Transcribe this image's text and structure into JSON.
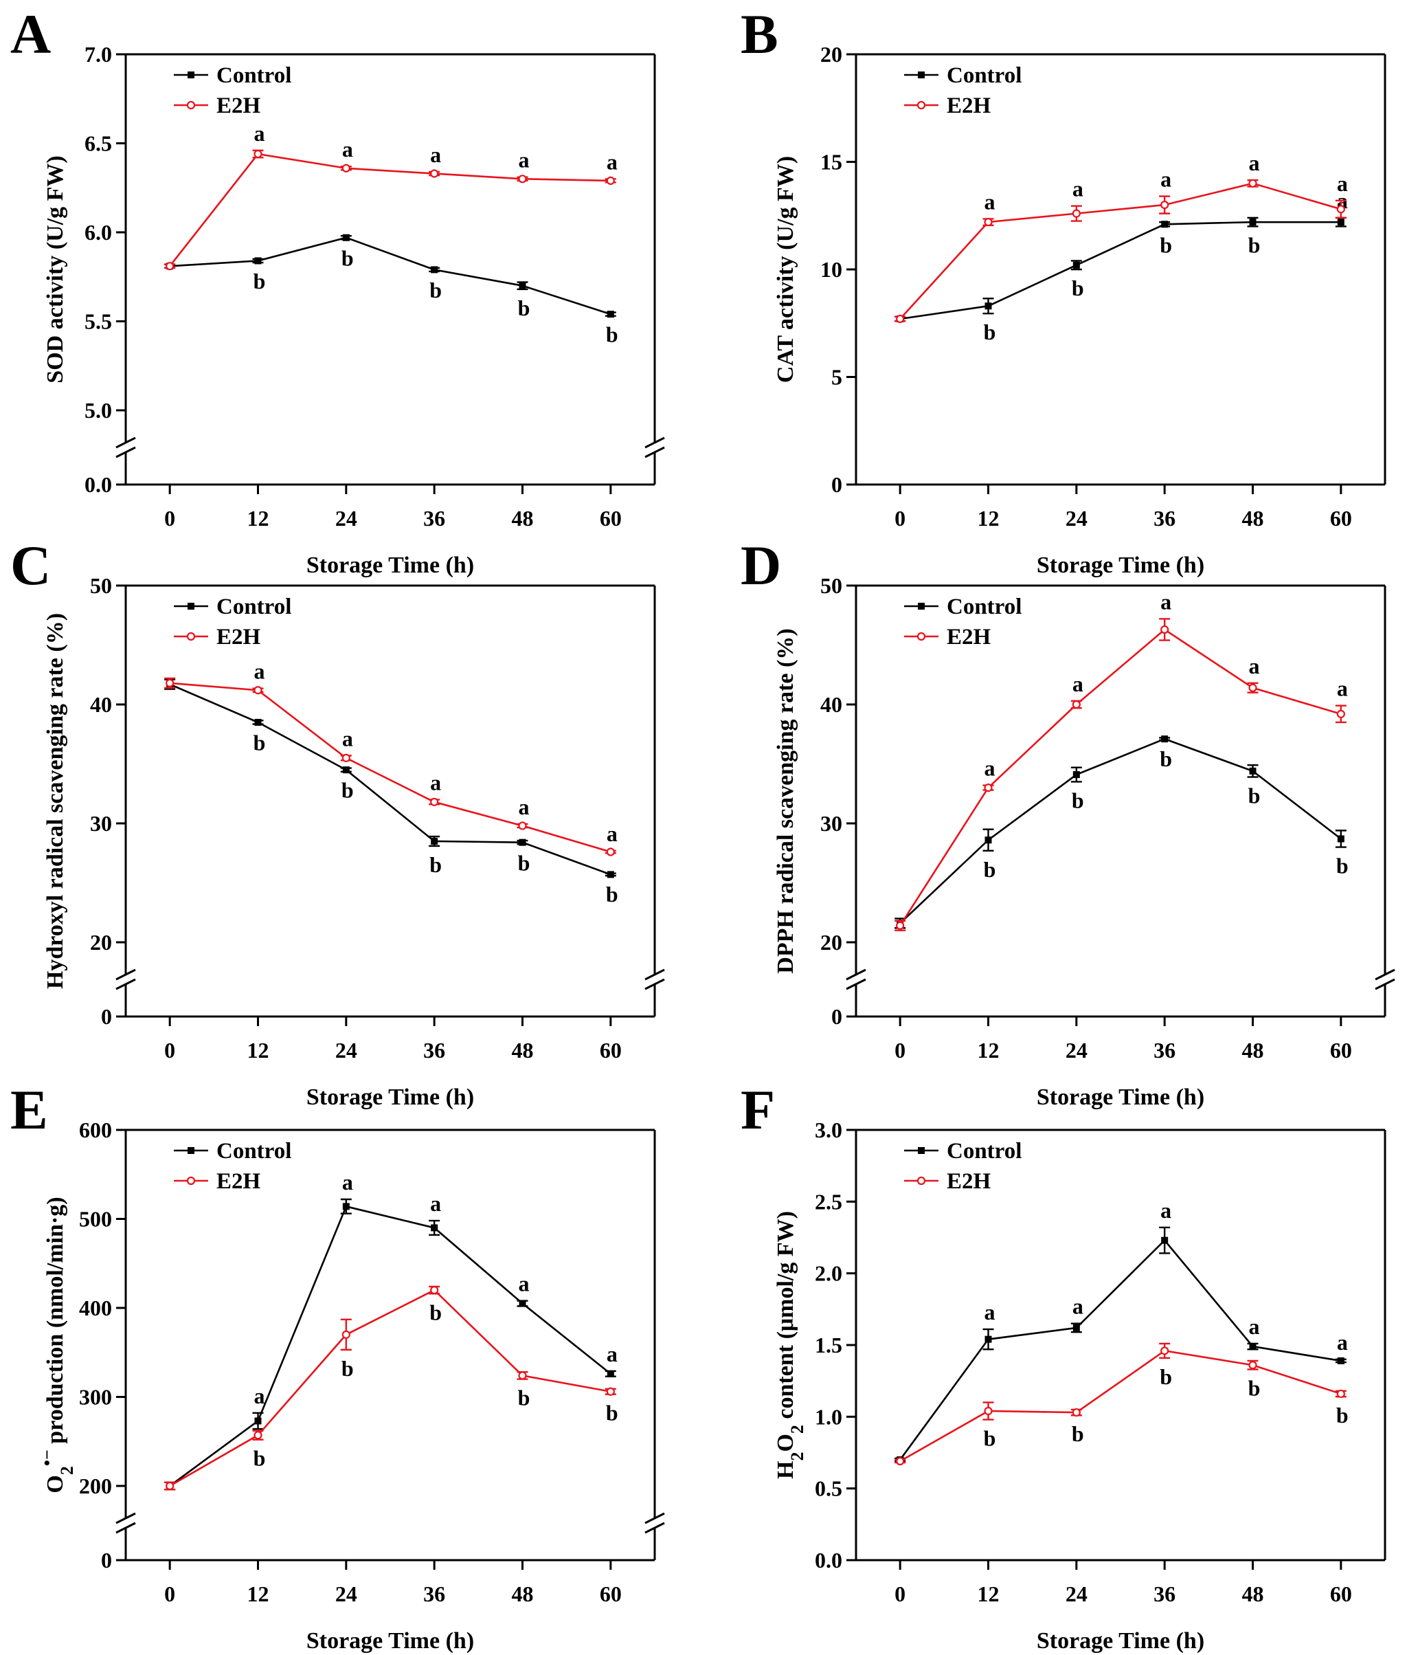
{
  "chart_data": [
    {
      "panel": "A",
      "type": "line",
      "xlabel": "Storage Time (h)",
      "ylabel": "SOD activity (U/g FW)",
      "ylabel_parts": [
        {
          "t": "SOD activity (U/g FW)"
        }
      ],
      "x": [
        0,
        12,
        24,
        36,
        48,
        60
      ],
      "xlim": [
        -6,
        66
      ],
      "x_ticks": [
        0,
        12,
        24,
        36,
        48,
        60
      ],
      "axis_break": true,
      "y_break_low": 0.0,
      "y_range": [
        5.0,
        7.0
      ],
      "y_ticks": [
        "5.0",
        "5.5",
        "6.0",
        "6.5",
        "7.0"
      ],
      "y_low_tick": "0.0",
      "legend_position": "top-left",
      "series": [
        {
          "name": "Control",
          "color": "#000000",
          "marker": "square",
          "values": [
            5.81,
            5.84,
            5.97,
            5.79,
            5.7,
            5.54
          ],
          "errors": [
            0.01,
            0.01,
            0.01,
            0.01,
            0.02,
            0.01
          ],
          "letters": [
            "",
            "b",
            "b",
            "b",
            "b",
            "b"
          ]
        },
        {
          "name": "E2H",
          "color": "#e8141c",
          "marker": "open-circle",
          "values": [
            5.81,
            6.44,
            6.36,
            6.33,
            6.3,
            6.29
          ],
          "errors": [
            0.01,
            0.02,
            0.01,
            0.01,
            0.01,
            0.01
          ],
          "letters": [
            "",
            "a",
            "a",
            "a",
            "a",
            "a"
          ]
        }
      ]
    },
    {
      "panel": "B",
      "type": "line",
      "xlabel": "Storage Time (h)",
      "ylabel": "CAT activity (U/g FW)",
      "ylabel_parts": [
        {
          "t": "CAT activity (U/g FW)"
        }
      ],
      "x": [
        0,
        12,
        24,
        36,
        48,
        60
      ],
      "xlim": [
        -6,
        66
      ],
      "x_ticks": [
        0,
        12,
        24,
        36,
        48,
        60
      ],
      "axis_break": false,
      "y_range": [
        0,
        20
      ],
      "y_ticks": [
        "0",
        "5",
        "10",
        "15",
        "20"
      ],
      "legend_position": "top-left",
      "series": [
        {
          "name": "Control",
          "color": "#000000",
          "marker": "square",
          "values": [
            7.7,
            8.3,
            10.2,
            12.1,
            12.2,
            12.2
          ],
          "errors": [
            0.1,
            0.35,
            0.2,
            0.1,
            0.2,
            0.2
          ],
          "letters": [
            "",
            "b",
            "b",
            "b",
            "b",
            "a"
          ]
        },
        {
          "name": "E2H",
          "color": "#e8141c",
          "marker": "open-circle",
          "values": [
            7.7,
            12.2,
            12.6,
            13.0,
            14.0,
            12.8
          ],
          "errors": [
            0.1,
            0.15,
            0.35,
            0.4,
            0.15,
            0.4
          ],
          "letters": [
            "",
            "a",
            "a",
            "a",
            "a",
            "a"
          ]
        }
      ]
    },
    {
      "panel": "C",
      "type": "line",
      "xlabel": "Storage Time (h)",
      "ylabel": "Hydroxyl radical scavenging rate (%)",
      "ylabel_parts": [
        {
          "t": "Hydroxyl radical scavenging rate (%)"
        }
      ],
      "x": [
        0,
        12,
        24,
        36,
        48,
        60
      ],
      "xlim": [
        -6,
        66
      ],
      "x_ticks": [
        0,
        12,
        24,
        36,
        48,
        60
      ],
      "axis_break": true,
      "y_break_low": 0,
      "y_range": [
        20,
        50
      ],
      "y_ticks": [
        "20",
        "30",
        "40",
        "50"
      ],
      "y_low_tick": "0",
      "legend_position": "top-left",
      "series": [
        {
          "name": "Control",
          "color": "#000000",
          "marker": "square",
          "values": [
            41.7,
            38.5,
            34.5,
            28.5,
            28.4,
            25.7
          ],
          "errors": [
            0.4,
            0.15,
            0.15,
            0.4,
            0.15,
            0.1
          ],
          "letters": [
            "",
            "b",
            "b",
            "b",
            "b",
            "b"
          ]
        },
        {
          "name": "E2H",
          "color": "#e8141c",
          "marker": "open-circle",
          "values": [
            41.8,
            41.2,
            35.5,
            31.8,
            29.8,
            27.6
          ],
          "errors": [
            0.4,
            0.15,
            0.2,
            0.2,
            0.15,
            0.1
          ],
          "letters": [
            "",
            "a",
            "a",
            "a",
            "a",
            "a"
          ]
        }
      ]
    },
    {
      "panel": "D",
      "type": "line",
      "xlabel": "Storage Time (h)",
      "ylabel": "DPPH radical scavenging rate (%)",
      "ylabel_parts": [
        {
          "t": "DPPH radical scavenging rate (%)"
        }
      ],
      "x": [
        0,
        12,
        24,
        36,
        48,
        60
      ],
      "xlim": [
        -6,
        66
      ],
      "x_ticks": [
        0,
        12,
        24,
        36,
        48,
        60
      ],
      "axis_break": true,
      "y_break_low": 0,
      "y_range": [
        20,
        50
      ],
      "y_ticks": [
        "20",
        "30",
        "40",
        "50"
      ],
      "y_low_tick": "0",
      "legend_position": "top-left",
      "series": [
        {
          "name": "Control",
          "color": "#000000",
          "marker": "square",
          "values": [
            21.6,
            28.6,
            34.1,
            37.1,
            34.4,
            28.7
          ],
          "errors": [
            0.4,
            0.9,
            0.6,
            0.1,
            0.5,
            0.7
          ],
          "letters": [
            "",
            "b",
            "b",
            "b",
            "b",
            "b"
          ]
        },
        {
          "name": "E2H",
          "color": "#e8141c",
          "marker": "open-circle",
          "values": [
            21.4,
            33.0,
            40.0,
            46.3,
            41.4,
            39.2
          ],
          "errors": [
            0.4,
            0.2,
            0.3,
            0.9,
            0.4,
            0.7
          ],
          "letters": [
            "",
            "a",
            "a",
            "a",
            "a",
            "a"
          ]
        }
      ]
    },
    {
      "panel": "E",
      "type": "line",
      "xlabel": "Storage Time (h)",
      "ylabel": "O2•− production (nmol/min·g)",
      "ylabel_parts": [
        {
          "t": "O"
        },
        {
          "t": "2",
          "sub": true
        },
        {
          "t": "•−",
          "sup": true
        },
        {
          "t": " production (nmol/min·g)"
        }
      ],
      "x": [
        0,
        12,
        24,
        36,
        48,
        60
      ],
      "xlim": [
        -6,
        66
      ],
      "x_ticks": [
        0,
        12,
        24,
        36,
        48,
        60
      ],
      "axis_break": true,
      "y_break_low": 0,
      "y_range": [
        200,
        600
      ],
      "y_ticks": [
        "200",
        "300",
        "400",
        "500",
        "600"
      ],
      "y_low_tick": "0",
      "legend_position": "top-left",
      "series": [
        {
          "name": "Control",
          "color": "#000000",
          "marker": "square",
          "values": [
            200,
            273,
            514,
            490,
            405,
            326
          ],
          "errors": [
            4,
            9,
            8,
            8,
            3,
            3
          ],
          "letters": [
            "",
            "a",
            "a",
            "a",
            "a",
            "a"
          ]
        },
        {
          "name": "E2H",
          "color": "#e8141c",
          "marker": "open-circle",
          "values": [
            200,
            257,
            370,
            420,
            324,
            306
          ],
          "errors": [
            4,
            5,
            17,
            4,
            4,
            3
          ],
          "letters": [
            "",
            "b",
            "b",
            "b",
            "b",
            "b"
          ]
        }
      ]
    },
    {
      "panel": "F",
      "type": "line",
      "xlabel": "Storage Time (h)",
      "ylabel": "H2O2 content (μmol/g FW)",
      "ylabel_parts": [
        {
          "t": "H"
        },
        {
          "t": "2",
          "sub": true
        },
        {
          "t": "O"
        },
        {
          "t": "2",
          "sub": true
        },
        {
          "t": " content (μmol/g FW)"
        }
      ],
      "x": [
        0,
        12,
        24,
        36,
        48,
        60
      ],
      "xlim": [
        -6,
        66
      ],
      "x_ticks": [
        0,
        12,
        24,
        36,
        48,
        60
      ],
      "axis_break": false,
      "y_range": [
        0.0,
        3.0
      ],
      "y_ticks": [
        "0.0",
        "0.5",
        "1.0",
        "1.5",
        "2.0",
        "2.5",
        "3.0"
      ],
      "legend_position": "top-left",
      "series": [
        {
          "name": "Control",
          "color": "#000000",
          "marker": "square",
          "values": [
            0.7,
            1.54,
            1.62,
            2.23,
            1.49,
            1.39
          ],
          "errors": [
            0.01,
            0.07,
            0.03,
            0.09,
            0.02,
            0.01
          ],
          "letters": [
            "",
            "a",
            "a",
            "a",
            "a",
            "a"
          ]
        },
        {
          "name": "E2H",
          "color": "#e8141c",
          "marker": "open-circle",
          "values": [
            0.69,
            1.04,
            1.03,
            1.46,
            1.36,
            1.16
          ],
          "errors": [
            0.01,
            0.06,
            0.02,
            0.05,
            0.03,
            0.02
          ],
          "letters": [
            "",
            "b",
            "b",
            "b",
            "b",
            "b"
          ]
        }
      ]
    }
  ]
}
